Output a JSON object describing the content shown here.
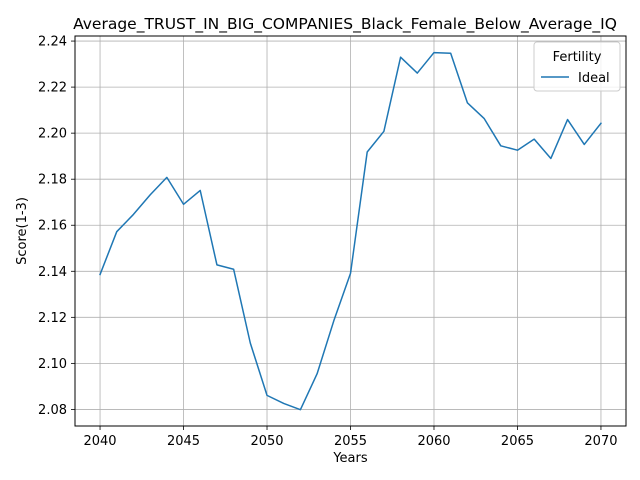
{
  "chart_data": {
    "type": "line",
    "title": "Average_TRUST_IN_BIG_COMPANIES_Black_Female_Below_Average_IQ",
    "xlabel": "Years",
    "ylabel": "Score(1-3)",
    "xlim": [
      2038.5,
      2071.5
    ],
    "ylim": [
      2.0728,
      2.2422
    ],
    "xticks": [
      2040,
      2045,
      2050,
      2055,
      2060,
      2065,
      2070
    ],
    "xtick_labels": [
      "2040",
      "2045",
      "2050",
      "2055",
      "2060",
      "2065",
      "2070"
    ],
    "yticks": [
      2.08,
      2.1,
      2.12,
      2.14,
      2.16,
      2.18,
      2.2,
      2.22,
      2.24
    ],
    "ytick_labels": [
      "2.08",
      "2.10",
      "2.12",
      "2.14",
      "2.16",
      "2.18",
      "2.20",
      "2.22",
      "2.24"
    ],
    "grid": true,
    "legend": {
      "title": "Fertility",
      "location": "top-right"
    },
    "x": [
      2040,
      2041,
      2042,
      2043,
      2044,
      2045,
      2046,
      2047,
      2048,
      2049,
      2050,
      2051,
      2052,
      2053,
      2054,
      2055,
      2056,
      2057,
      2058,
      2059,
      2060,
      2061,
      2062,
      2063,
      2064,
      2065,
      2066,
      2067,
      2068,
      2069,
      2070
    ],
    "series": [
      {
        "name": "Ideal",
        "color": "#1f77b4",
        "values": [
          2.1386,
          2.1572,
          2.1647,
          2.1732,
          2.1808,
          2.1691,
          2.1751,
          2.1428,
          2.1409,
          2.1088,
          2.0861,
          2.0826,
          2.0799,
          2.0955,
          2.1185,
          2.1391,
          2.1918,
          2.2008,
          2.233,
          2.2261,
          2.235,
          2.2347,
          2.2132,
          2.2064,
          2.1945,
          2.1926,
          2.1974,
          2.189,
          2.2059,
          2.1951,
          2.2043
        ]
      }
    ]
  }
}
